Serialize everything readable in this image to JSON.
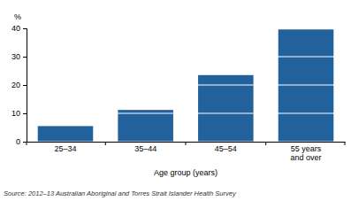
{
  "chart_data": {
    "type": "bar",
    "categories": [
      "25–34",
      "35–44",
      "45–54",
      "55 years and over"
    ],
    "values": [
      5.5,
      11.2,
      23.5,
      39.6
    ],
    "color": "#23619c",
    "ylim": [
      0,
      40
    ],
    "yticks": [
      0,
      10,
      20,
      30,
      40
    ],
    "grid": true,
    "ylabel": "%",
    "xlabel": "Age group (years)",
    "source": "Source: 2012–13 Australian Aboriginal and Torres Strait Islander Health Survey"
  }
}
